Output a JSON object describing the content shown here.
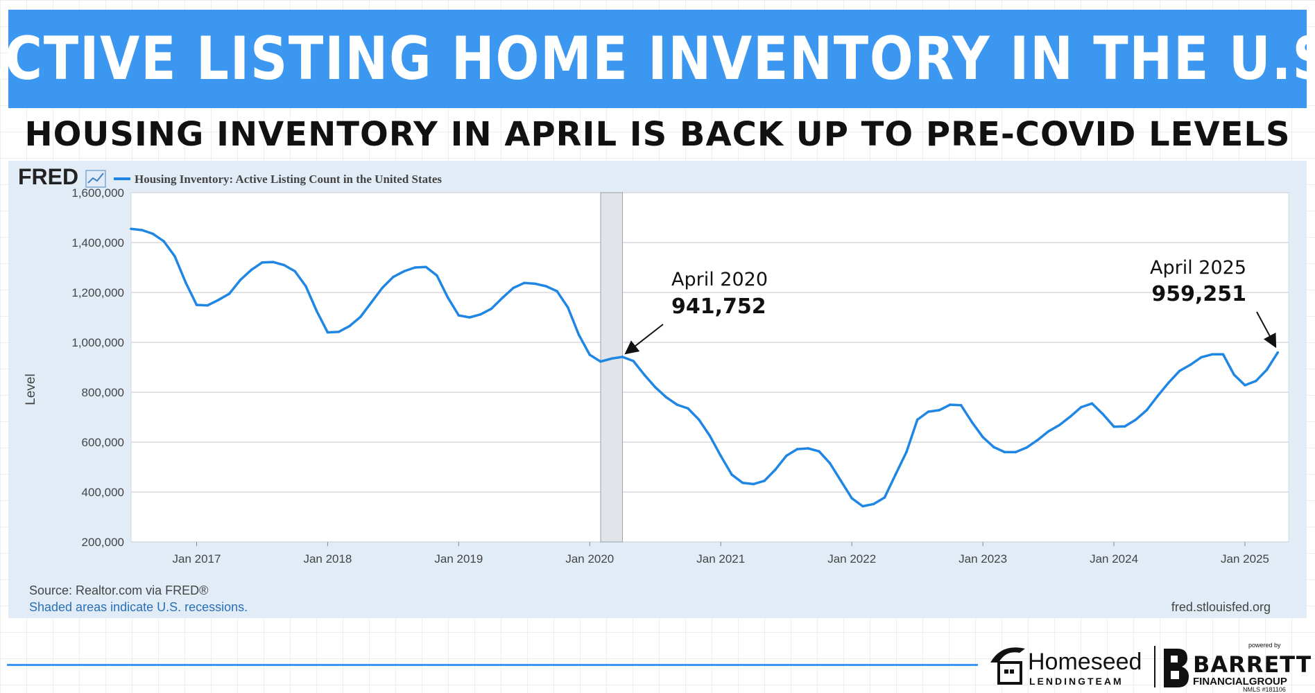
{
  "header": {
    "title": "ACTIVE LISTING HOME INVENTORY IN THE U.S.",
    "subtitle": "HOUSING INVENTORY IN APRIL IS BACK UP TO PRE-COVID LEVELS"
  },
  "colors": {
    "accent": "#3b97f0",
    "series": "#1f86e3",
    "panel_bg": "#e1ecf7",
    "recession": "#e1e4e8"
  },
  "fred": {
    "logo": "FRED",
    "logo_icon": "chart-trend-icon",
    "source": "Source: Realtor.com via FRED®",
    "recession_note": "Shaded areas indicate U.S. recessions.",
    "site": "fred.stlouisfed.org"
  },
  "chart_data": {
    "type": "line",
    "title": "",
    "xlabel": "",
    "ylabel": "Level",
    "ylim": [
      200000,
      1600000
    ],
    "yticks": [
      200000,
      400000,
      600000,
      800000,
      1000000,
      1200000,
      1400000,
      1600000
    ],
    "ytick_labels": [
      "200,000",
      "400,000",
      "600,000",
      "800,000",
      "1,000,000",
      "1,200,000",
      "1,400,000",
      "1,600,000"
    ],
    "xlim": [
      "2016-07",
      "2025-05"
    ],
    "xticks": [
      "2017-01",
      "2018-01",
      "2019-01",
      "2020-01",
      "2021-01",
      "2022-01",
      "2023-01",
      "2024-01",
      "2025-01"
    ],
    "xtick_labels": [
      "Jan 2017",
      "Jan 2018",
      "Jan 2019",
      "Jan 2020",
      "Jan 2021",
      "Jan 2022",
      "Jan 2023",
      "Jan 2024",
      "Jan 2025"
    ],
    "grid": true,
    "legend_position": "top-left",
    "recessions": [
      {
        "start": "2020-02",
        "end": "2020-04"
      }
    ],
    "series": [
      {
        "name": "Housing Inventory: Active Listing Count in the United States",
        "x": [
          "2016-07",
          "2016-08",
          "2016-09",
          "2016-10",
          "2016-11",
          "2016-12",
          "2017-01",
          "2017-02",
          "2017-03",
          "2017-04",
          "2017-05",
          "2017-06",
          "2017-07",
          "2017-08",
          "2017-09",
          "2017-10",
          "2017-11",
          "2017-12",
          "2018-01",
          "2018-02",
          "2018-03",
          "2018-04",
          "2018-05",
          "2018-06",
          "2018-07",
          "2018-08",
          "2018-09",
          "2018-10",
          "2018-11",
          "2018-12",
          "2019-01",
          "2019-02",
          "2019-03",
          "2019-04",
          "2019-05",
          "2019-06",
          "2019-07",
          "2019-08",
          "2019-09",
          "2019-10",
          "2019-11",
          "2019-12",
          "2020-01",
          "2020-02",
          "2020-03",
          "2020-04",
          "2020-05",
          "2020-06",
          "2020-07",
          "2020-08",
          "2020-09",
          "2020-10",
          "2020-11",
          "2020-12",
          "2021-01",
          "2021-02",
          "2021-03",
          "2021-04",
          "2021-05",
          "2021-06",
          "2021-07",
          "2021-08",
          "2021-09",
          "2021-10",
          "2021-11",
          "2021-12",
          "2022-01",
          "2022-02",
          "2022-03",
          "2022-04",
          "2022-05",
          "2022-06",
          "2022-07",
          "2022-08",
          "2022-09",
          "2022-10",
          "2022-11",
          "2022-12",
          "2023-01",
          "2023-02",
          "2023-03",
          "2023-04",
          "2023-05",
          "2023-06",
          "2023-07",
          "2023-08",
          "2023-09",
          "2023-10",
          "2023-11",
          "2023-12",
          "2024-01",
          "2024-02",
          "2024-03",
          "2024-04",
          "2024-05",
          "2024-06",
          "2024-07",
          "2024-08",
          "2024-09",
          "2024-10",
          "2024-11",
          "2024-12",
          "2025-01",
          "2025-02",
          "2025-03",
          "2025-04"
        ],
        "values": [
          1455000,
          1450000,
          1435000,
          1405000,
          1345000,
          1240000,
          1150000,
          1148000,
          1170000,
          1195000,
          1250000,
          1290000,
          1320000,
          1322000,
          1310000,
          1285000,
          1225000,
          1125000,
          1040000,
          1042000,
          1065000,
          1102000,
          1160000,
          1218000,
          1262000,
          1285000,
          1300000,
          1302000,
          1268000,
          1180000,
          1108000,
          1100000,
          1112000,
          1135000,
          1178000,
          1218000,
          1238000,
          1235000,
          1225000,
          1205000,
          1140000,
          1030000,
          950000,
          923000,
          935000,
          941752,
          925000,
          870000,
          820000,
          780000,
          750000,
          735000,
          690000,
          625000,
          545000,
          470000,
          437000,
          432000,
          445000,
          490000,
          545000,
          572000,
          575000,
          563000,
          515000,
          445000,
          375000,
          343000,
          352000,
          378000,
          470000,
          560000,
          690000,
          722000,
          728000,
          750000,
          748000,
          680000,
          620000,
          580000,
          560000,
          560000,
          578000,
          608000,
          643000,
          668000,
          702000,
          740000,
          755000,
          712000,
          662000,
          663000,
          690000,
          728000,
          785000,
          838000,
          885000,
          910000,
          940000,
          952000,
          952000,
          870000,
          828000,
          845000,
          890000,
          959251
        ]
      }
    ],
    "annotations": [
      {
        "label": "April 2020",
        "value": "941,752",
        "x": "2020-04",
        "y": 941752
      },
      {
        "label": "April 2025",
        "value": "959,251",
        "x": "2025-04",
        "y": 959251
      }
    ]
  },
  "logos": {
    "homeseed_name": "Homeseed",
    "homeseed_tag": "LENDINGTEAM",
    "homeseed_icon": "house-icon",
    "powered_by": "powered by",
    "barrett_name": "BARRETT",
    "barrett_tag": "FINANCIALGROUP",
    "nmls": "NMLS #181106"
  }
}
